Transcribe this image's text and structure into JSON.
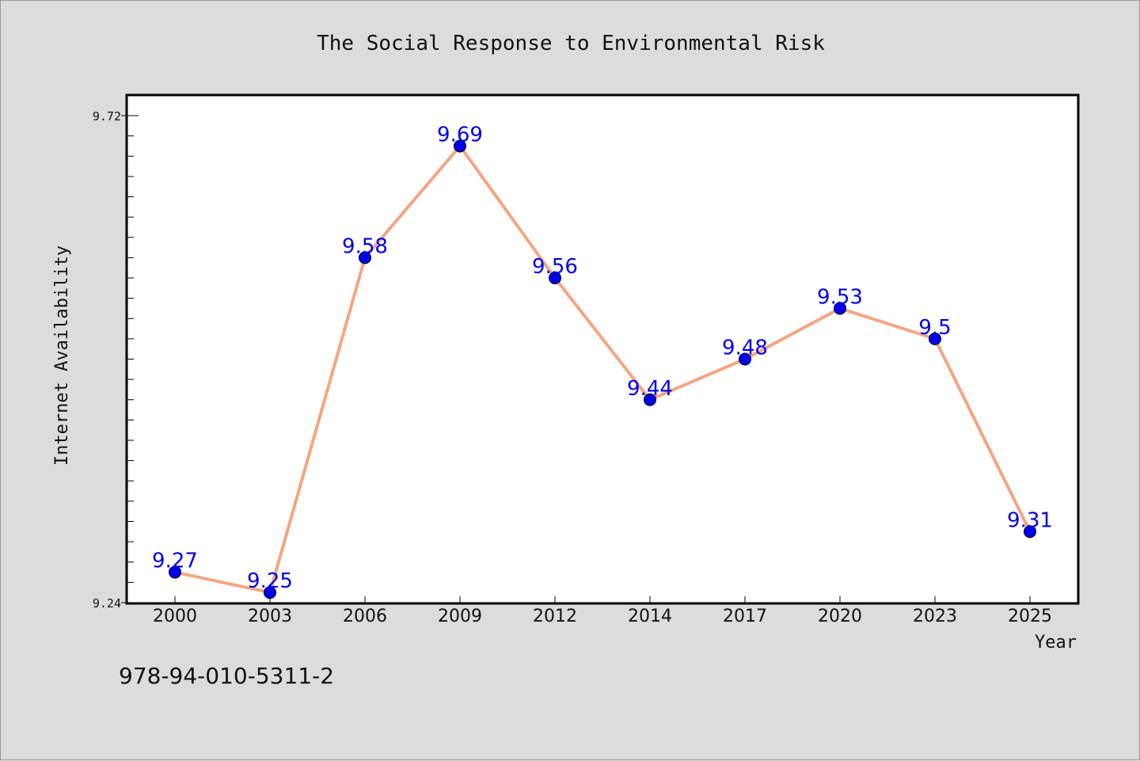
{
  "chart_data": {
    "type": "line",
    "title": "The Social Response to Environmental Risk",
    "xlabel": "Year",
    "ylabel": "Internet Availability",
    "categories": [
      "2000",
      "2003",
      "2006",
      "2009",
      "2012",
      "2014",
      "2017",
      "2020",
      "2023",
      "2025"
    ],
    "series": [
      {
        "values": [
          9.27,
          9.25,
          9.58,
          9.69,
          9.56,
          9.44,
          9.48,
          9.53,
          9.5,
          9.31
        ],
        "line_color": "#f4a582",
        "marker_color": "#0000ee"
      }
    ],
    "data_labels": [
      "9.27",
      "9.25",
      "9.58",
      "9.69",
      "9.56",
      "9.44",
      "9.48",
      "9.53",
      "9.5",
      "9.31"
    ],
    "ylim": [
      9.24,
      9.72
    ],
    "yticks": [
      9.24,
      9.72
    ],
    "ytick_labels": [
      "9.24",
      "9.72"
    ],
    "grid": false,
    "legend": "none"
  },
  "footnote": "978-94-010-5311-2"
}
